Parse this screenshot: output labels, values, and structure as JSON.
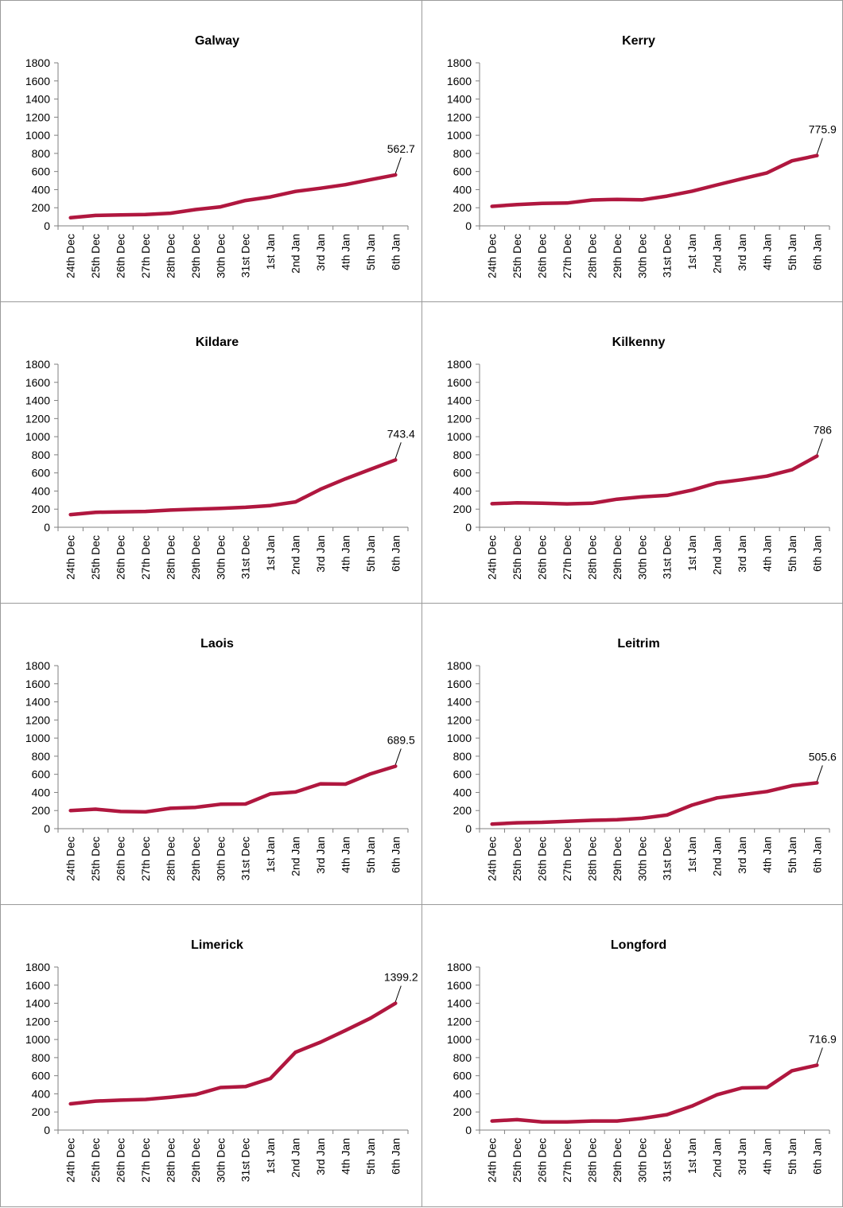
{
  "chart_data": [
    {
      "type": "line",
      "title": "Galway",
      "categories": [
        "24th Dec",
        "25th Dec",
        "26th Dec",
        "27th Dec",
        "28th Dec",
        "29th Dec",
        "30th Dec",
        "31st Dec",
        "1st Jan",
        "2nd Jan",
        "3rd Jan",
        "4th Jan",
        "5th Jan",
        "6th Jan"
      ],
      "values": [
        90,
        115,
        120,
        125,
        140,
        180,
        210,
        280,
        320,
        380,
        415,
        455,
        510,
        562.7
      ],
      "data_label": "562.7",
      "ylim": [
        0,
        1800
      ],
      "yticks": [
        0,
        200,
        400,
        600,
        800,
        1000,
        1200,
        1400,
        1600,
        1800
      ],
      "color": "#B0173F",
      "xlabel": "",
      "ylabel": ""
    },
    {
      "type": "line",
      "title": "Kerry",
      "categories": [
        "24th Dec",
        "25th Dec",
        "26th Dec",
        "27th Dec",
        "28th Dec",
        "29th Dec",
        "30th Dec",
        "31st Dec",
        "1st Jan",
        "2nd Jan",
        "3rd Jan",
        "4th Jan",
        "5th Jan",
        "6th Jan"
      ],
      "values": [
        215,
        235,
        248,
        252,
        285,
        292,
        287,
        328,
        383,
        452,
        520,
        585,
        718,
        775.9
      ],
      "data_label": "775.9",
      "ylim": [
        0,
        1800
      ],
      "yticks": [
        0,
        200,
        400,
        600,
        800,
        1000,
        1200,
        1400,
        1600,
        1800
      ],
      "color": "#B0173F",
      "xlabel": "",
      "ylabel": ""
    },
    {
      "type": "line",
      "title": "Kildare",
      "categories": [
        "24th Dec",
        "25th Dec",
        "26th Dec",
        "27th Dec",
        "28th Dec",
        "29th Dec",
        "30th Dec",
        "31st Dec",
        "1st Jan",
        "2nd Jan",
        "3rd Jan",
        "4th Jan",
        "5th Jan",
        "6th Jan"
      ],
      "values": [
        140,
        165,
        170,
        175,
        190,
        200,
        208,
        220,
        240,
        280,
        420,
        535,
        640,
        743.4
      ],
      "data_label": "743.4",
      "ylim": [
        0,
        1800
      ],
      "yticks": [
        0,
        200,
        400,
        600,
        800,
        1000,
        1200,
        1400,
        1600,
        1800
      ],
      "color": "#B0173F",
      "xlabel": "",
      "ylabel": ""
    },
    {
      "type": "line",
      "title": "Kilkenny",
      "categories": [
        "24th Dec",
        "25th Dec",
        "26th Dec",
        "27th Dec",
        "28th Dec",
        "29th Dec",
        "30th Dec",
        "31st Dec",
        "1st Jan",
        "2nd Jan",
        "3rd Jan",
        "4th Jan",
        "5th Jan",
        "6th Jan"
      ],
      "values": [
        260,
        270,
        265,
        258,
        265,
        310,
        335,
        352,
        410,
        490,
        525,
        565,
        635,
        786
      ],
      "data_label": "786",
      "ylim": [
        0,
        1800
      ],
      "yticks": [
        0,
        200,
        400,
        600,
        800,
        1000,
        1200,
        1400,
        1600,
        1800
      ],
      "color": "#B0173F",
      "xlabel": "",
      "ylabel": ""
    },
    {
      "type": "line",
      "title": "Laois",
      "categories": [
        "24th Dec",
        "25th Dec",
        "26th Dec",
        "27th Dec",
        "28th Dec",
        "29th Dec",
        "30th Dec",
        "31st Dec",
        "1st Jan",
        "2nd Jan",
        "3rd Jan",
        "4th Jan",
        "5th Jan",
        "6th Jan"
      ],
      "values": [
        200,
        215,
        190,
        185,
        225,
        235,
        270,
        272,
        385,
        405,
        495,
        492,
        605,
        689.5
      ],
      "data_label": "689.5",
      "ylim": [
        0,
        1800
      ],
      "yticks": [
        0,
        200,
        400,
        600,
        800,
        1000,
        1200,
        1400,
        1600,
        1800
      ],
      "color": "#B0173F",
      "xlabel": "",
      "ylabel": ""
    },
    {
      "type": "line",
      "title": "Leitrim",
      "categories": [
        "24th Dec",
        "25th Dec",
        "26th Dec",
        "27th Dec",
        "28th Dec",
        "29th Dec",
        "30th Dec",
        "31st Dec",
        "1st Jan",
        "2nd Jan",
        "3rd Jan",
        "4th Jan",
        "5th Jan",
        "6th Jan"
      ],
      "values": [
        50,
        65,
        70,
        82,
        92,
        98,
        115,
        150,
        260,
        340,
        375,
        410,
        475,
        505.6
      ],
      "data_label": "505.6",
      "ylim": [
        0,
        1800
      ],
      "yticks": [
        0,
        200,
        400,
        600,
        800,
        1000,
        1200,
        1400,
        1600,
        1800
      ],
      "color": "#B0173F",
      "xlabel": "",
      "ylabel": ""
    },
    {
      "type": "line",
      "title": "Limerick",
      "categories": [
        "24th Dec",
        "25th Dec",
        "26th Dec",
        "27th Dec",
        "28th Dec",
        "29th Dec",
        "30th Dec",
        "31st Dec",
        "1st Jan",
        "2nd Jan",
        "3rd Jan",
        "4th Jan",
        "5th Jan",
        "6th Jan"
      ],
      "values": [
        290,
        320,
        330,
        338,
        362,
        392,
        470,
        480,
        570,
        860,
        970,
        1100,
        1235,
        1399.2
      ],
      "data_label": "1399.2",
      "ylim": [
        0,
        1800
      ],
      "yticks": [
        0,
        200,
        400,
        600,
        800,
        1000,
        1200,
        1400,
        1600,
        1800
      ],
      "color": "#B0173F",
      "xlabel": "",
      "ylabel": ""
    },
    {
      "type": "line",
      "title": "Longford",
      "categories": [
        "24th Dec",
        "25th Dec",
        "26th Dec",
        "27th Dec",
        "28th Dec",
        "29th Dec",
        "30th Dec",
        "31st Dec",
        "1st Jan",
        "2nd Jan",
        "3rd Jan",
        "4th Jan",
        "5th Jan",
        "6th Jan"
      ],
      "values": [
        100,
        115,
        90,
        90,
        100,
        100,
        128,
        170,
        265,
        390,
        465,
        470,
        655,
        716.9
      ],
      "data_label": "716.9",
      "ylim": [
        0,
        1800
      ],
      "yticks": [
        0,
        200,
        400,
        600,
        800,
        1000,
        1200,
        1400,
        1600,
        1800
      ],
      "color": "#B0173F",
      "xlabel": "",
      "ylabel": ""
    }
  ]
}
